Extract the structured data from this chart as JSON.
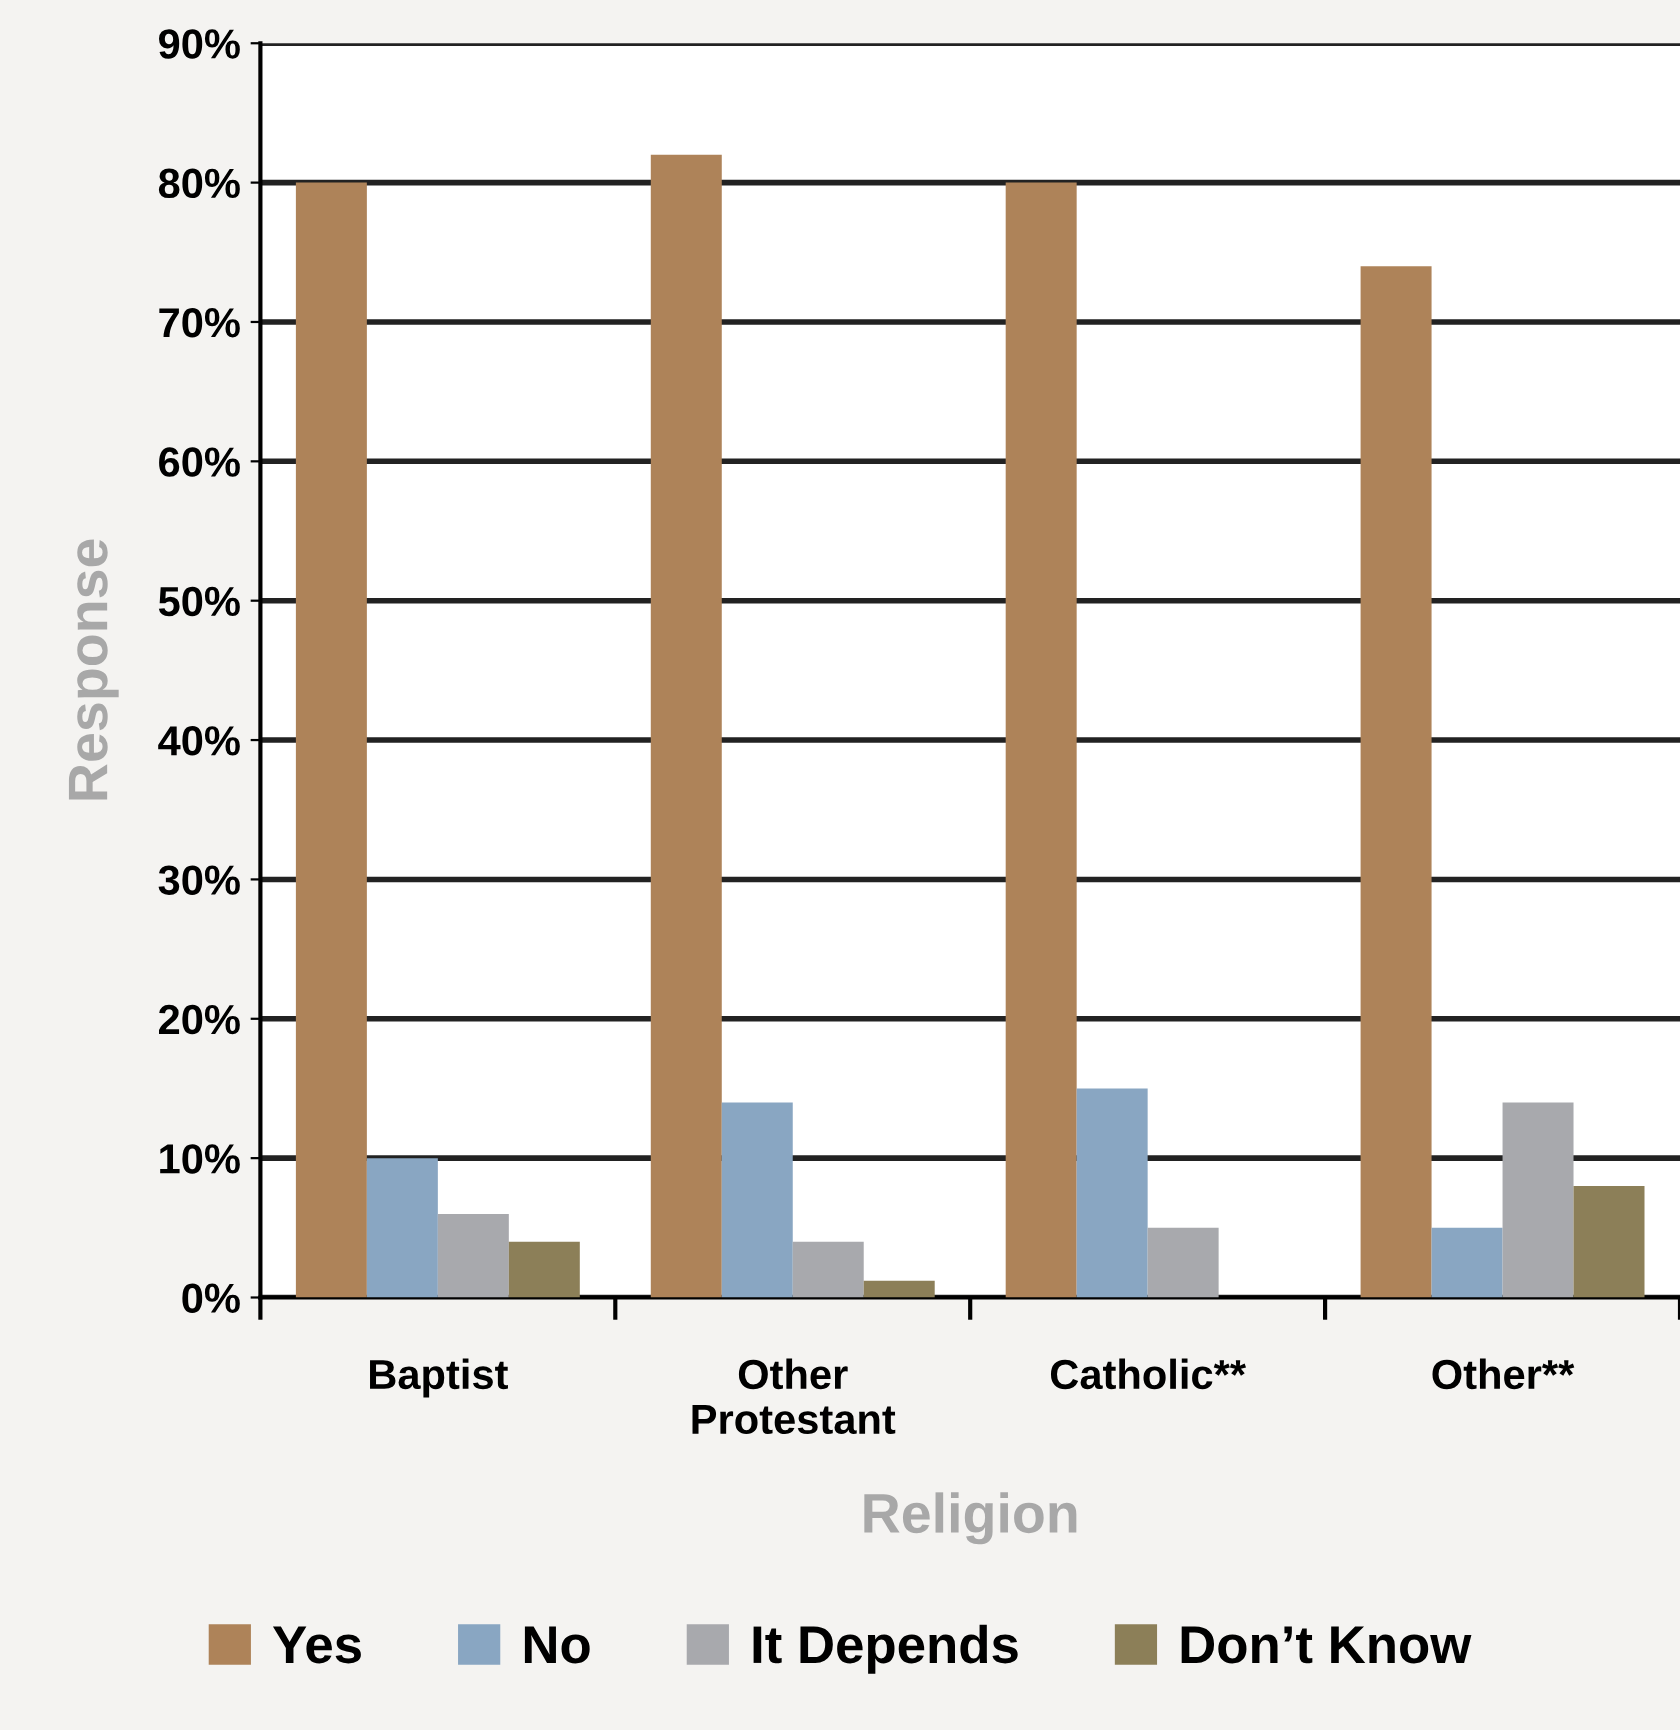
{
  "chart_data": {
    "type": "bar",
    "xlabel": "Religion",
    "ylabel": "Response",
    "categories": [
      "Baptist",
      "Other\nProtestant",
      "Catholic**",
      "Other**"
    ],
    "series": [
      {
        "name": "Yes",
        "color": "#ae8359",
        "values": [
          80,
          82,
          80,
          74
        ]
      },
      {
        "name": "No",
        "color": "#89a6c2",
        "values": [
          10,
          14,
          15,
          5
        ]
      },
      {
        "name": "It Depends",
        "color": "#a8a9ad",
        "values": [
          6,
          4,
          5,
          14
        ]
      },
      {
        "name": "Don’t Know",
        "color": "#8c7f58",
        "values": [
          4,
          1.2,
          null,
          8
        ]
      }
    ],
    "ylim": [
      0,
      90
    ],
    "yticks": [
      {
        "value": 0,
        "label": "0%"
      },
      {
        "value": 10,
        "label": "10%"
      },
      {
        "value": 20,
        "label": "20%"
      },
      {
        "value": 30,
        "label": "30%"
      },
      {
        "value": 40,
        "label": "40%"
      },
      {
        "value": 50,
        "label": "50%"
      },
      {
        "value": 60,
        "label": "60%"
      },
      {
        "value": 70,
        "label": "70%"
      },
      {
        "value": 80,
        "label": "80%"
      },
      {
        "value": 90,
        "label": "90%"
      }
    ],
    "grid": "y",
    "legend": "bottom"
  }
}
